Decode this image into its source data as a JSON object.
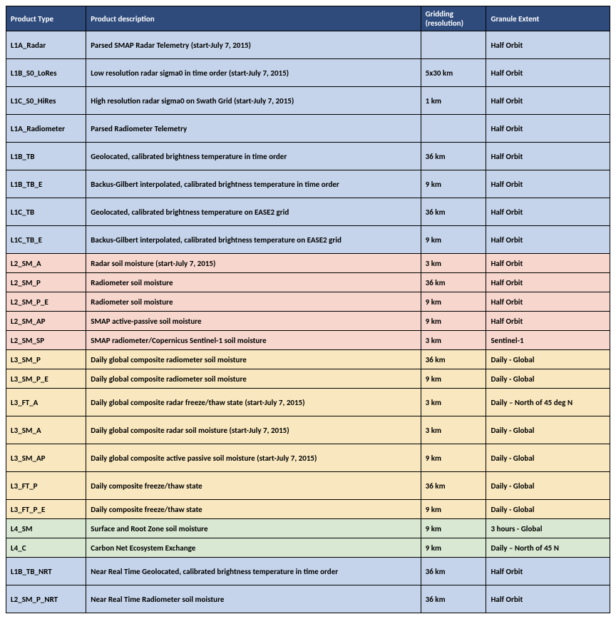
{
  "columns": [
    "Product Type",
    "Product description",
    "Gridding (resolution)",
    "Granule Extent"
  ],
  "rows": [
    {
      "group": "blue",
      "h": "tall",
      "type": "L1A_Radar",
      "desc": "Parsed SMAP Radar Telemetry (start-July 7, 2015)",
      "grid": "",
      "ext": "Half Orbit"
    },
    {
      "group": "blue",
      "h": "tall",
      "type": "L1B_S0_LoRes",
      "desc": "Low resolution radar sigma0 in time order (start-July 7, 2015)",
      "grid": "5x30 km",
      "ext": "Half Orbit"
    },
    {
      "group": "blue",
      "h": "tall",
      "type": "L1C_S0_HiRes",
      "desc": "High resolution radar sigma0 on Swath Grid (start-July 7, 2015)",
      "grid": "1 km",
      "ext": "Half Orbit"
    },
    {
      "group": "blue",
      "h": "tall",
      "type": "L1A_Radiometer",
      "desc": "Parsed Radiometer Telemetry",
      "grid": "",
      "ext": "Half Orbit"
    },
    {
      "group": "blue",
      "h": "tall",
      "type": "L1B_TB",
      "desc": "Geolocated, calibrated brightness temperature in time order",
      "grid": "36 km",
      "ext": "Half Orbit"
    },
    {
      "group": "blue",
      "h": "tall",
      "type": "L1B_TB_E",
      "desc": "Backus-Gilbert interpolated, calibrated brightness temperature in time order",
      "grid": "9 km",
      "ext": "Half Orbit"
    },
    {
      "group": "blue",
      "h": "tall",
      "type": "L1C_TB",
      "desc": "Geolocated, calibrated brightness temperature on EASE2 grid",
      "grid": "36 km",
      "ext": "Half Orbit"
    },
    {
      "group": "blue",
      "h": "tall",
      "type": "L1C_TB_E",
      "desc": "Backus-Gilbert interpolated, calibrated brightness temperature on EASE2 grid",
      "grid": "9 km",
      "ext": "Half Orbit"
    },
    {
      "group": "peach",
      "h": "short",
      "type": "L2_SM_A",
      "desc": "Radar soil moisture (start-July 7, 2015)",
      "grid": "3 km",
      "ext": "Half Orbit"
    },
    {
      "group": "peach",
      "h": "short",
      "type": "L2_SM_P",
      "desc": "Radiometer soil moisture",
      "grid": "36 km",
      "ext": "Half Orbit"
    },
    {
      "group": "peach",
      "h": "short",
      "type": "L2_SM_P_E",
      "desc": "Radiometer soil moisture",
      "grid": "9 km",
      "ext": "Half Orbit"
    },
    {
      "group": "peach",
      "h": "short",
      "type": "L2_SM_AP",
      "desc": "SMAP active-passive soil moisture",
      "grid": "9 km",
      "ext": "Half Orbit"
    },
    {
      "group": "peach",
      "h": "short",
      "type": "L2_SM_SP",
      "desc": "SMAP radiometer/Copernicus Sentinel-1 soil moisture",
      "grid": "3 km",
      "ext": "Sentinel-1"
    },
    {
      "group": "yellow",
      "h": "short",
      "type": "L3_SM_P",
      "desc": "Daily global composite radiometer soil moisture",
      "grid": "36 km",
      "ext": "Daily - Global"
    },
    {
      "group": "yellow",
      "h": "short",
      "type": "L3_SM_P_E",
      "desc": "Daily global composite radiometer soil moisture",
      "grid": "9 km",
      "ext": "Daily - Global"
    },
    {
      "group": "yellow",
      "h": "tall",
      "type": "L3_FT_A",
      "desc": "Daily global composite radar freeze/thaw state (start-July 7, 2015)",
      "grid": "3 km",
      "ext": "Daily – North of 45 deg N"
    },
    {
      "group": "yellow",
      "h": "tall",
      "type": "L3_SM_A",
      "desc": "Daily global composite radar soil moisture (start-July 7, 2015)",
      "grid": "3 km",
      "ext": "Daily - Global"
    },
    {
      "group": "yellow",
      "h": "tall",
      "type": "L3_SM_AP",
      "desc": "Daily global composite active passive soil moisture (start-July 7, 2015)",
      "grid": "9 km",
      "ext": "Daily - Global"
    },
    {
      "group": "yellow",
      "h": "tall",
      "type": "L3_FT_P",
      "desc": "Daily composite freeze/thaw state",
      "grid": "36 km",
      "ext": "Daily - Global"
    },
    {
      "group": "yellow",
      "h": "short",
      "type": "L3_FT_P_E",
      "desc": "Daily composite freeze/thaw state",
      "grid": "9 km",
      "ext": "Daily - Global"
    },
    {
      "group": "green",
      "h": "short",
      "type": "L4_SM",
      "desc": "Surface and Root Zone soil moisture",
      "grid": "9 km",
      "ext": "3 hours - Global"
    },
    {
      "group": "green",
      "h": "short",
      "type": "L4_C",
      "desc": "Carbon Net Ecosystem Exchange",
      "grid": "9 km",
      "ext": "Daily – North of 45 N"
    },
    {
      "group": "blue",
      "h": "tall",
      "type": "L1B_TB_NRT",
      "desc": "Near Real Time Geolocated, calibrated brightness temperature in time order",
      "grid": "36 km",
      "ext": "Half Orbit"
    },
    {
      "group": "blue",
      "h": "tall",
      "type": "L2_SM_P_NRT",
      "desc": "Near Real Time Radiometer soil moisture",
      "grid": "36 km",
      "ext": "Half Orbit"
    }
  ]
}
